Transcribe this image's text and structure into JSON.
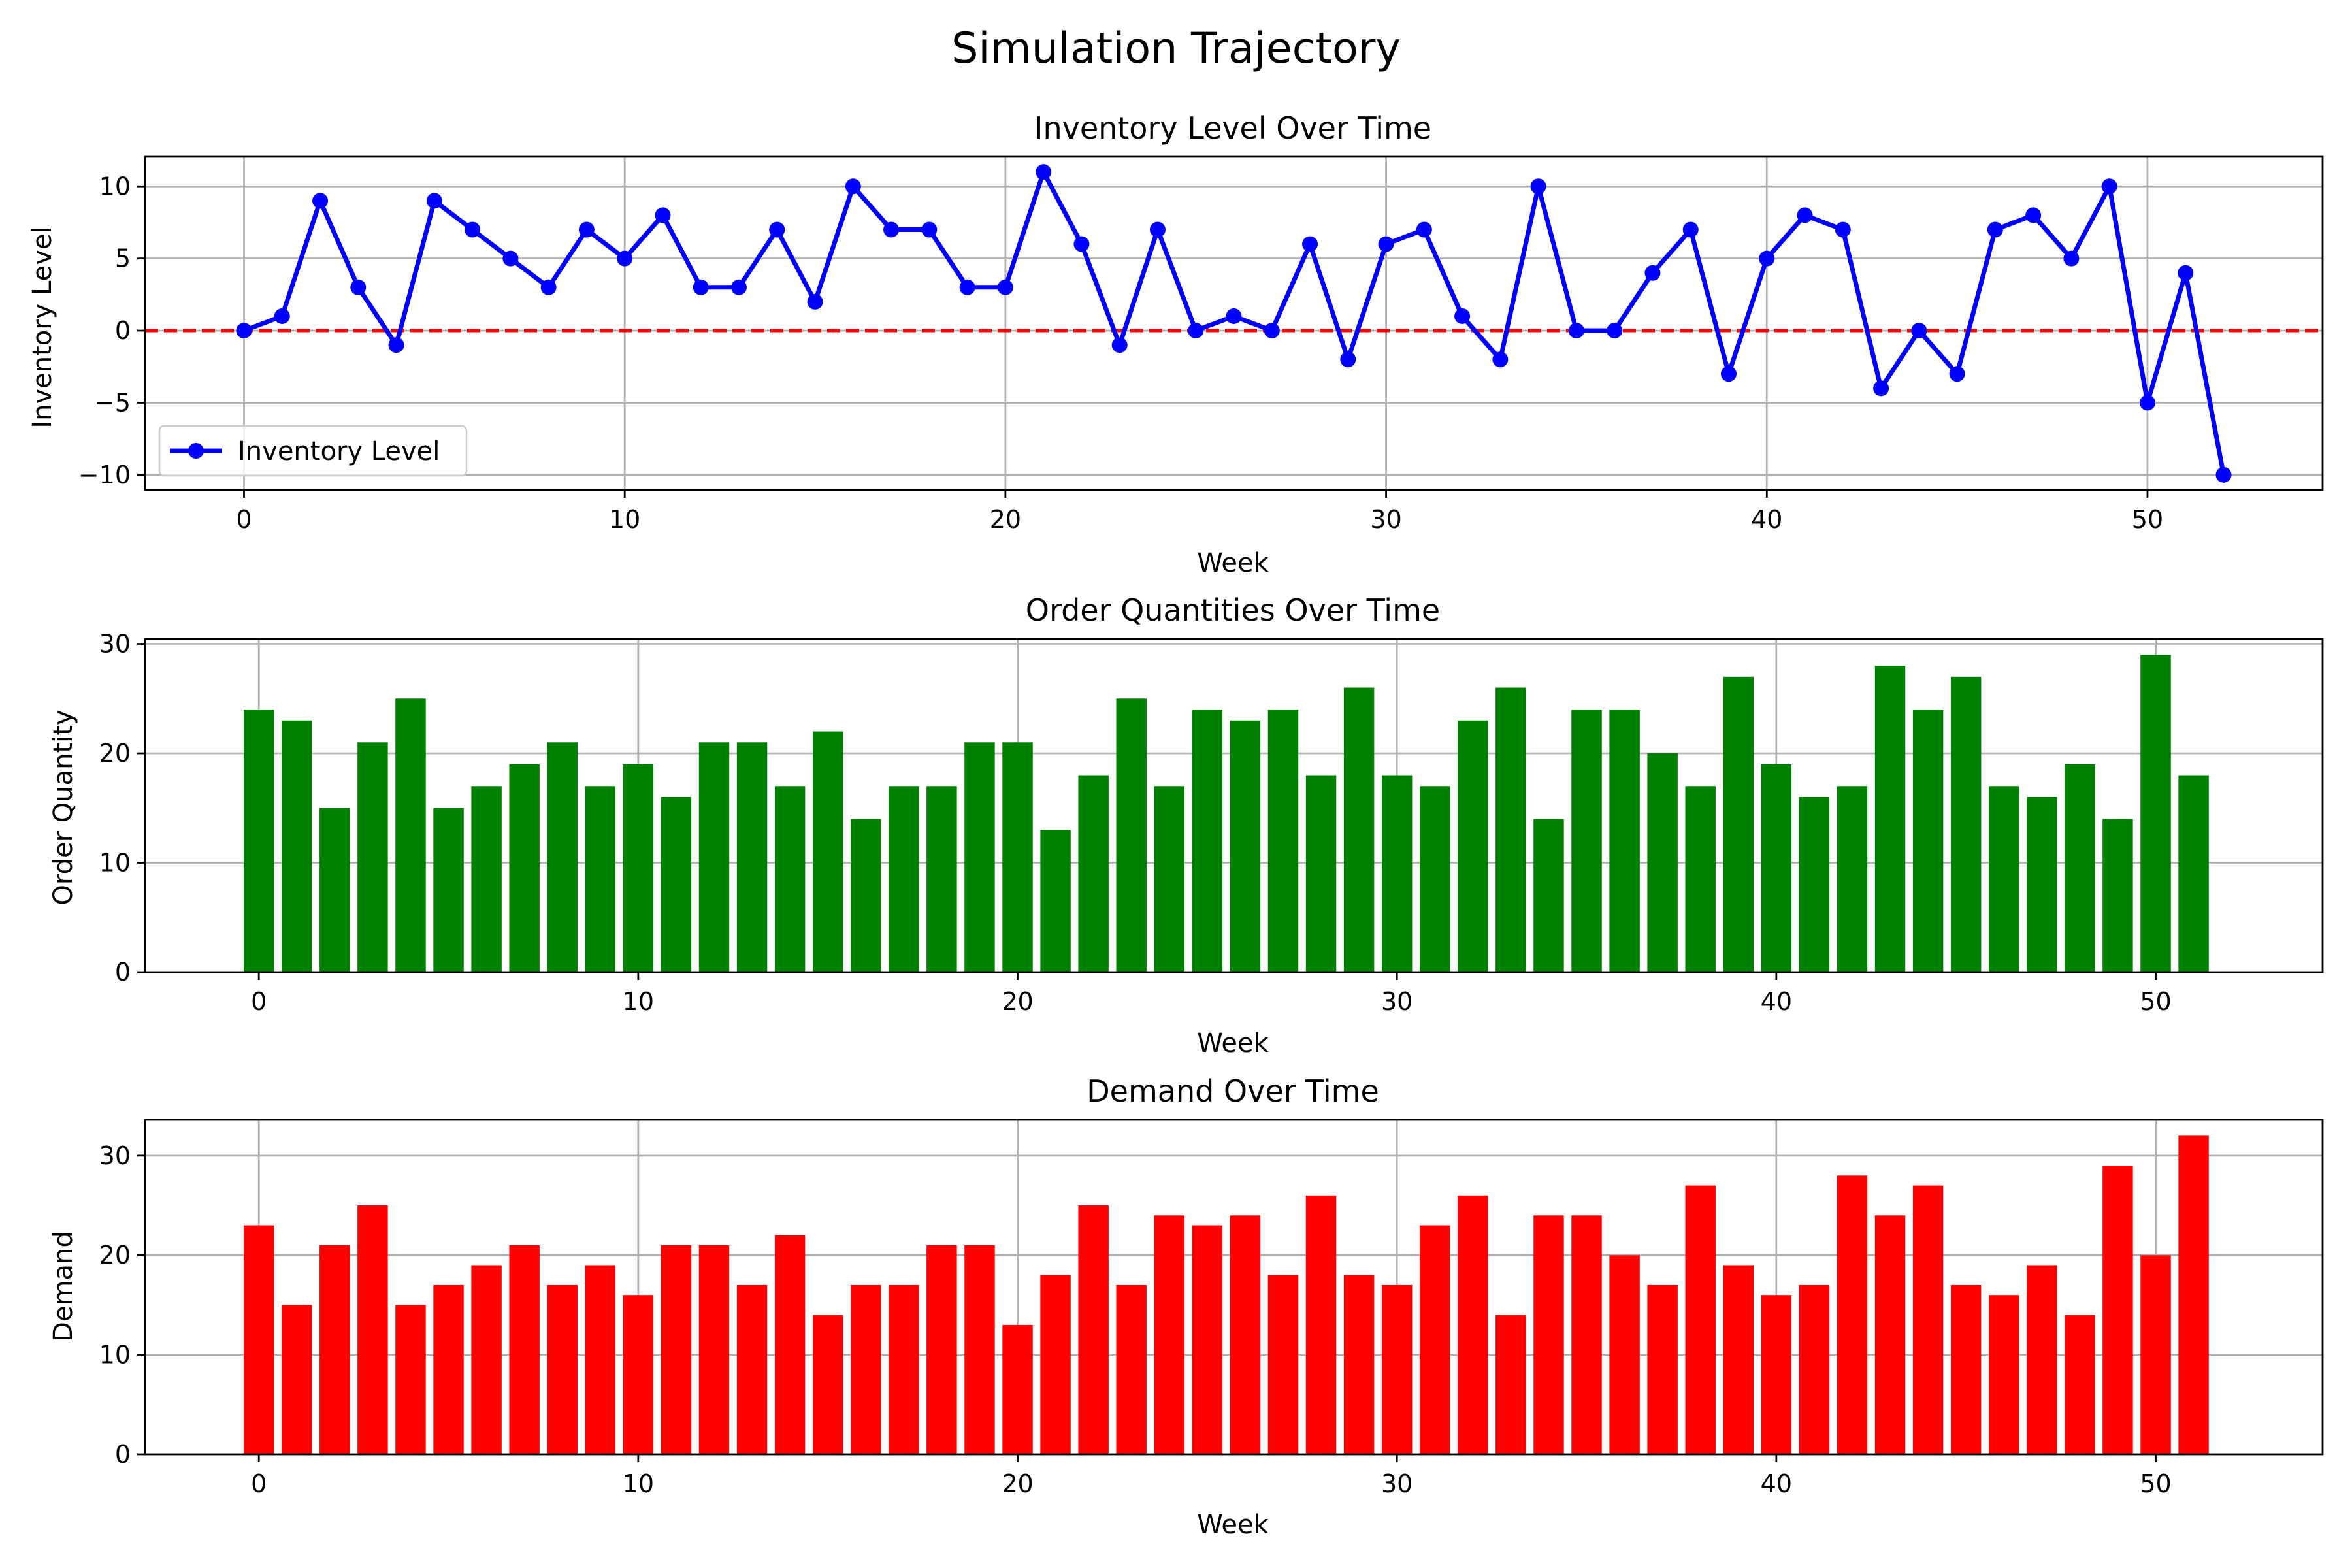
{
  "suptitle": "Simulation Trajectory",
  "chart_data": [
    {
      "type": "line",
      "title": "Inventory Level Over Time",
      "xlabel": "Week",
      "ylabel": "Inventory Level",
      "color": "#0000ff",
      "reference_line": {
        "y": 0,
        "color": "#ff0000",
        "style": "dashed"
      },
      "grid": true,
      "legend": {
        "position": "lower-left",
        "entries": [
          "Inventory Level"
        ]
      },
      "xlim": [
        -2.6,
        54.6
      ],
      "ylim": [
        -11.05,
        12.05
      ],
      "xticks": [
        0,
        10,
        20,
        30,
        40,
        50
      ],
      "xtick_labels": [
        "0",
        "10",
        "20",
        "30",
        "40",
        "50"
      ],
      "yticks": [
        -10,
        -5,
        0,
        5,
        10
      ],
      "ytick_labels": [
        "−10",
        "−5",
        "0",
        "5",
        "10"
      ],
      "series": [
        {
          "name": "Inventory Level",
          "x": [
            0,
            1,
            2,
            3,
            4,
            5,
            6,
            7,
            8,
            9,
            10,
            11,
            12,
            13,
            14,
            15,
            16,
            17,
            18,
            19,
            20,
            21,
            22,
            23,
            24,
            25,
            26,
            27,
            28,
            29,
            30,
            31,
            32,
            33,
            34,
            35,
            36,
            37,
            38,
            39,
            40,
            41,
            42,
            43,
            44,
            45,
            46,
            47,
            48,
            49,
            50,
            51,
            52
          ],
          "y": [
            0,
            1,
            9,
            3,
            -1,
            9,
            7,
            5,
            3,
            7,
            5,
            8,
            3,
            3,
            7,
            2,
            10,
            7,
            7,
            3,
            3,
            11,
            6,
            -1,
            7,
            0,
            1,
            0,
            6,
            -2,
            6,
            7,
            1,
            -2,
            10,
            0,
            0,
            4,
            7,
            -3,
            5,
            8,
            7,
            -4,
            0,
            -3,
            7,
            8,
            5,
            10,
            -5,
            4,
            -10
          ]
        }
      ]
    },
    {
      "type": "bar",
      "title": "Order Quantities Over Time",
      "xlabel": "Week",
      "ylabel": "Order Quantity",
      "color": "#008000",
      "grid": true,
      "xlim": [
        -3.0,
        54.4
      ],
      "ylim": [
        0,
        30.45
      ],
      "xticks": [
        0,
        10,
        20,
        30,
        40,
        50
      ],
      "xtick_labels": [
        "0",
        "10",
        "20",
        "30",
        "40",
        "50"
      ],
      "yticks": [
        0,
        10,
        20,
        30
      ],
      "ytick_labels": [
        "0",
        "10",
        "20",
        "30"
      ],
      "x": [
        0,
        1,
        2,
        3,
        4,
        5,
        6,
        7,
        8,
        9,
        10,
        11,
        12,
        13,
        14,
        15,
        16,
        17,
        18,
        19,
        20,
        21,
        22,
        23,
        24,
        25,
        26,
        27,
        28,
        29,
        30,
        31,
        32,
        33,
        34,
        35,
        36,
        37,
        38,
        39,
        40,
        41,
        42,
        43,
        44,
        45,
        46,
        47,
        48,
        49,
        50,
        51
      ],
      "values": [
        24,
        23,
        15,
        21,
        25,
        15,
        17,
        19,
        21,
        17,
        19,
        16,
        21,
        21,
        17,
        22,
        14,
        17,
        17,
        21,
        21,
        13,
        18,
        25,
        17,
        24,
        23,
        24,
        18,
        26,
        18,
        17,
        23,
        26,
        14,
        24,
        24,
        20,
        17,
        27,
        19,
        16,
        17,
        28,
        24,
        27,
        17,
        16,
        19,
        14,
        29,
        18
      ]
    },
    {
      "type": "bar",
      "title": "Demand Over Time",
      "xlabel": "Week",
      "ylabel": "Demand",
      "color": "#ff0000",
      "grid": true,
      "xlim": [
        -3.0,
        54.4
      ],
      "ylim": [
        0,
        33.6
      ],
      "xticks": [
        0,
        10,
        20,
        30,
        40,
        50
      ],
      "xtick_labels": [
        "0",
        "10",
        "20",
        "30",
        "40",
        "50"
      ],
      "yticks": [
        0,
        10,
        20,
        30
      ],
      "ytick_labels": [
        "0",
        "10",
        "20",
        "30"
      ],
      "x": [
        0,
        1,
        2,
        3,
        4,
        5,
        6,
        7,
        8,
        9,
        10,
        11,
        12,
        13,
        14,
        15,
        16,
        17,
        18,
        19,
        20,
        21,
        22,
        23,
        24,
        25,
        26,
        27,
        28,
        29,
        30,
        31,
        32,
        33,
        34,
        35,
        36,
        37,
        38,
        39,
        40,
        41,
        42,
        43,
        44,
        45,
        46,
        47,
        48,
        49,
        50,
        51
      ],
      "values": [
        23,
        15,
        21,
        25,
        15,
        17,
        19,
        21,
        17,
        19,
        16,
        21,
        21,
        17,
        22,
        14,
        17,
        17,
        21,
        21,
        13,
        18,
        25,
        17,
        24,
        23,
        24,
        18,
        26,
        18,
        17,
        23,
        26,
        14,
        24,
        24,
        20,
        17,
        27,
        19,
        16,
        17,
        28,
        24,
        27,
        17,
        16,
        19,
        14,
        29,
        20,
        32
      ]
    }
  ]
}
